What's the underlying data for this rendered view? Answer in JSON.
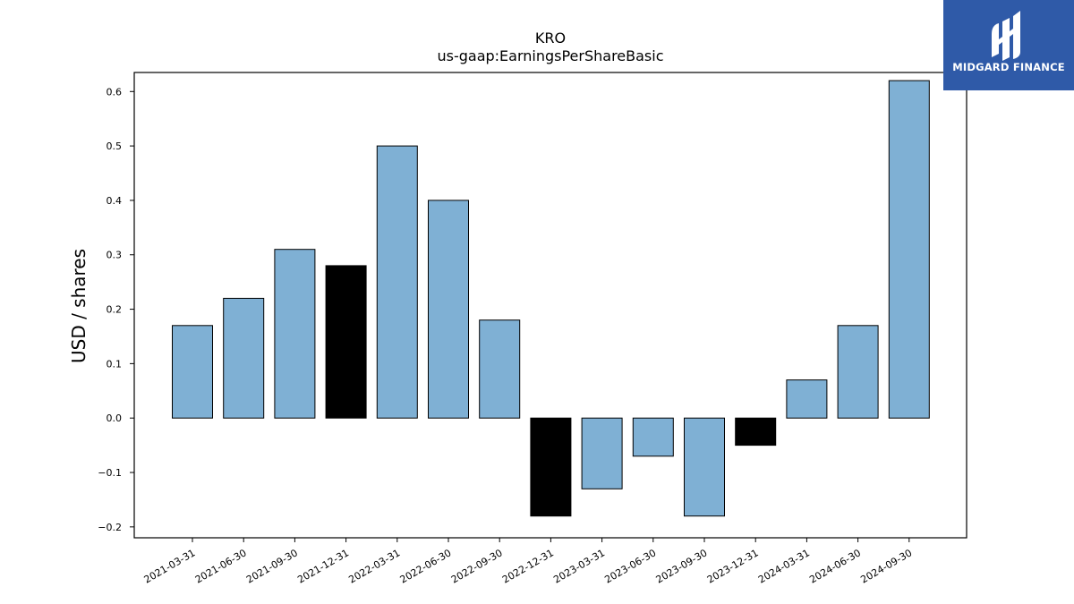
{
  "chart_data": {
    "type": "bar",
    "title": "KRO",
    "subtitle": "us-gaap:EarningsPerShareBasic",
    "xlabel": "",
    "ylabel": "USD / shares",
    "ylim": [
      -0.22,
      0.635
    ],
    "yticks": [
      -0.2,
      -0.1,
      0.0,
      0.1,
      0.2,
      0.3,
      0.4,
      0.5,
      0.6
    ],
    "ytick_labels": [
      "−0.2",
      "−0.1",
      "0.0",
      "0.1",
      "0.2",
      "0.3",
      "0.4",
      "0.5",
      "0.6"
    ],
    "categories": [
      "2021-03-31",
      "2021-06-30",
      "2021-09-30",
      "2021-12-31",
      "2022-03-31",
      "2022-06-30",
      "2022-09-30",
      "2022-12-31",
      "2023-03-31",
      "2023-06-30",
      "2023-09-30",
      "2023-12-31",
      "2024-03-31",
      "2024-06-30",
      "2024-09-30"
    ],
    "values": [
      0.17,
      0.22,
      0.31,
      0.28,
      0.5,
      0.4,
      0.18,
      -0.18,
      -0.13,
      -0.07,
      -0.18,
      -0.05,
      0.07,
      0.17,
      0.62
    ],
    "highlighted": [
      false,
      false,
      false,
      true,
      false,
      false,
      false,
      true,
      false,
      false,
      false,
      true,
      false,
      false,
      false
    ],
    "grid": false,
    "colors": {
      "bar": "#7fb0d4",
      "highlight": "#000000",
      "edge": "#000000"
    }
  },
  "logo": {
    "text": "MIDGARD FINANCE",
    "background": "#2f5aa8",
    "icon": "midgard-logo-icon"
  }
}
